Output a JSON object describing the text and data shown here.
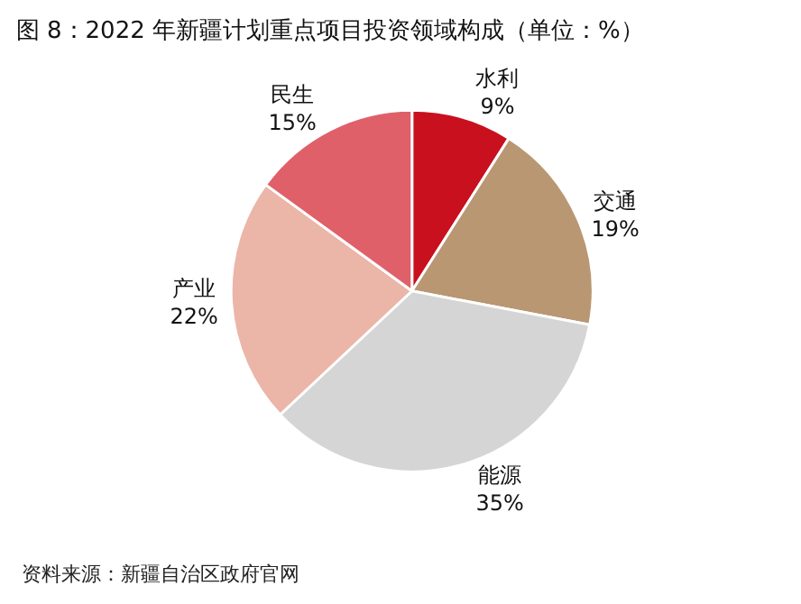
{
  "chart_data": {
    "type": "pie",
    "title": "图 8：2022 年新疆计划重点项目投资领域构成（单位：%）",
    "categories": [
      "水利",
      "交通",
      "能源",
      "产业",
      "民生"
    ],
    "values": [
      9,
      19,
      35,
      22,
      15
    ],
    "value_labels": [
      "9%",
      "19%",
      "35%",
      "22%",
      "15%"
    ],
    "colors": [
      "#c8101f",
      "#b99772",
      "#d5d5d5",
      "#ebb5a8",
      "#e0606a"
    ],
    "legend": false,
    "annotations": [
      "资料来源：新疆自治区政府官网"
    ]
  }
}
